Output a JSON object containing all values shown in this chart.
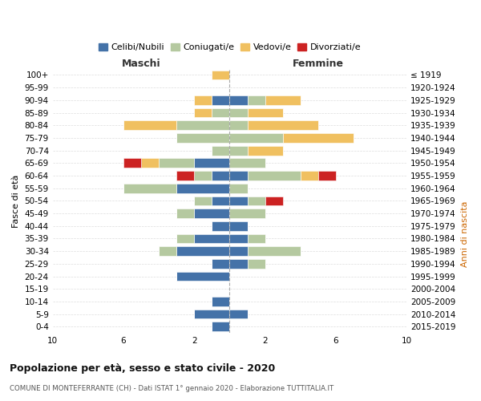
{
  "age_groups": [
    "0-4",
    "5-9",
    "10-14",
    "15-19",
    "20-24",
    "25-29",
    "30-34",
    "35-39",
    "40-44",
    "45-49",
    "50-54",
    "55-59",
    "60-64",
    "65-69",
    "70-74",
    "75-79",
    "80-84",
    "85-89",
    "90-94",
    "95-99",
    "100+"
  ],
  "birth_years": [
    "2015-2019",
    "2010-2014",
    "2005-2009",
    "2000-2004",
    "1995-1999",
    "1990-1994",
    "1985-1989",
    "1980-1984",
    "1975-1979",
    "1970-1974",
    "1965-1969",
    "1960-1964",
    "1955-1959",
    "1950-1954",
    "1945-1949",
    "1940-1944",
    "1935-1939",
    "1930-1934",
    "1925-1929",
    "1920-1924",
    "≤ 1919"
  ],
  "colors": {
    "celibi": "#4472a8",
    "coniugati": "#b5c9a0",
    "vedovi": "#f0c060",
    "divorziati": "#cc2222"
  },
  "maschi": {
    "celibi": [
      1,
      2,
      1,
      0,
      3,
      1,
      3,
      2,
      1,
      2,
      1,
      3,
      1,
      2,
      0,
      0,
      0,
      0,
      1,
      0,
      0
    ],
    "coniugati": [
      0,
      0,
      0,
      0,
      0,
      0,
      1,
      1,
      0,
      1,
      1,
      3,
      1,
      2,
      1,
      3,
      3,
      1,
      0,
      0,
      0
    ],
    "vedovi": [
      0,
      0,
      0,
      0,
      0,
      0,
      0,
      0,
      0,
      0,
      0,
      0,
      0,
      1,
      0,
      0,
      3,
      1,
      1,
      0,
      1
    ],
    "divorziati": [
      0,
      0,
      0,
      0,
      0,
      0,
      0,
      0,
      0,
      0,
      0,
      0,
      1,
      1,
      0,
      0,
      0,
      0,
      0,
      0,
      0
    ]
  },
  "femmine": {
    "celibi": [
      0,
      1,
      0,
      0,
      0,
      1,
      1,
      1,
      1,
      0,
      1,
      0,
      1,
      0,
      0,
      0,
      0,
      0,
      1,
      0,
      0
    ],
    "coniugati": [
      0,
      0,
      0,
      0,
      0,
      1,
      3,
      1,
      0,
      2,
      1,
      1,
      3,
      2,
      1,
      3,
      1,
      1,
      1,
      0,
      0
    ],
    "vedovi": [
      0,
      0,
      0,
      0,
      0,
      0,
      0,
      0,
      0,
      0,
      0,
      0,
      1,
      0,
      2,
      4,
      4,
      2,
      2,
      0,
      0
    ],
    "divorziati": [
      0,
      0,
      0,
      0,
      0,
      0,
      0,
      0,
      0,
      0,
      1,
      0,
      1,
      0,
      0,
      0,
      0,
      0,
      0,
      0,
      0
    ]
  },
  "xlim": 10,
  "title_main": "Popolazione per età, sesso e stato civile - 2020",
  "title_sub": "COMUNE DI MONTEFERRANTE (CH) - Dati ISTAT 1° gennaio 2020 - Elaborazione TUTTITALIA.IT",
  "ylabel_left": "Fasce di età",
  "ylabel_right": "Anni di nascita",
  "label_maschi": "Maschi",
  "label_femmine": "Femmine",
  "legend_labels": [
    "Celibi/Nubili",
    "Coniugati/e",
    "Vedovi/e",
    "Divorziati/e"
  ]
}
